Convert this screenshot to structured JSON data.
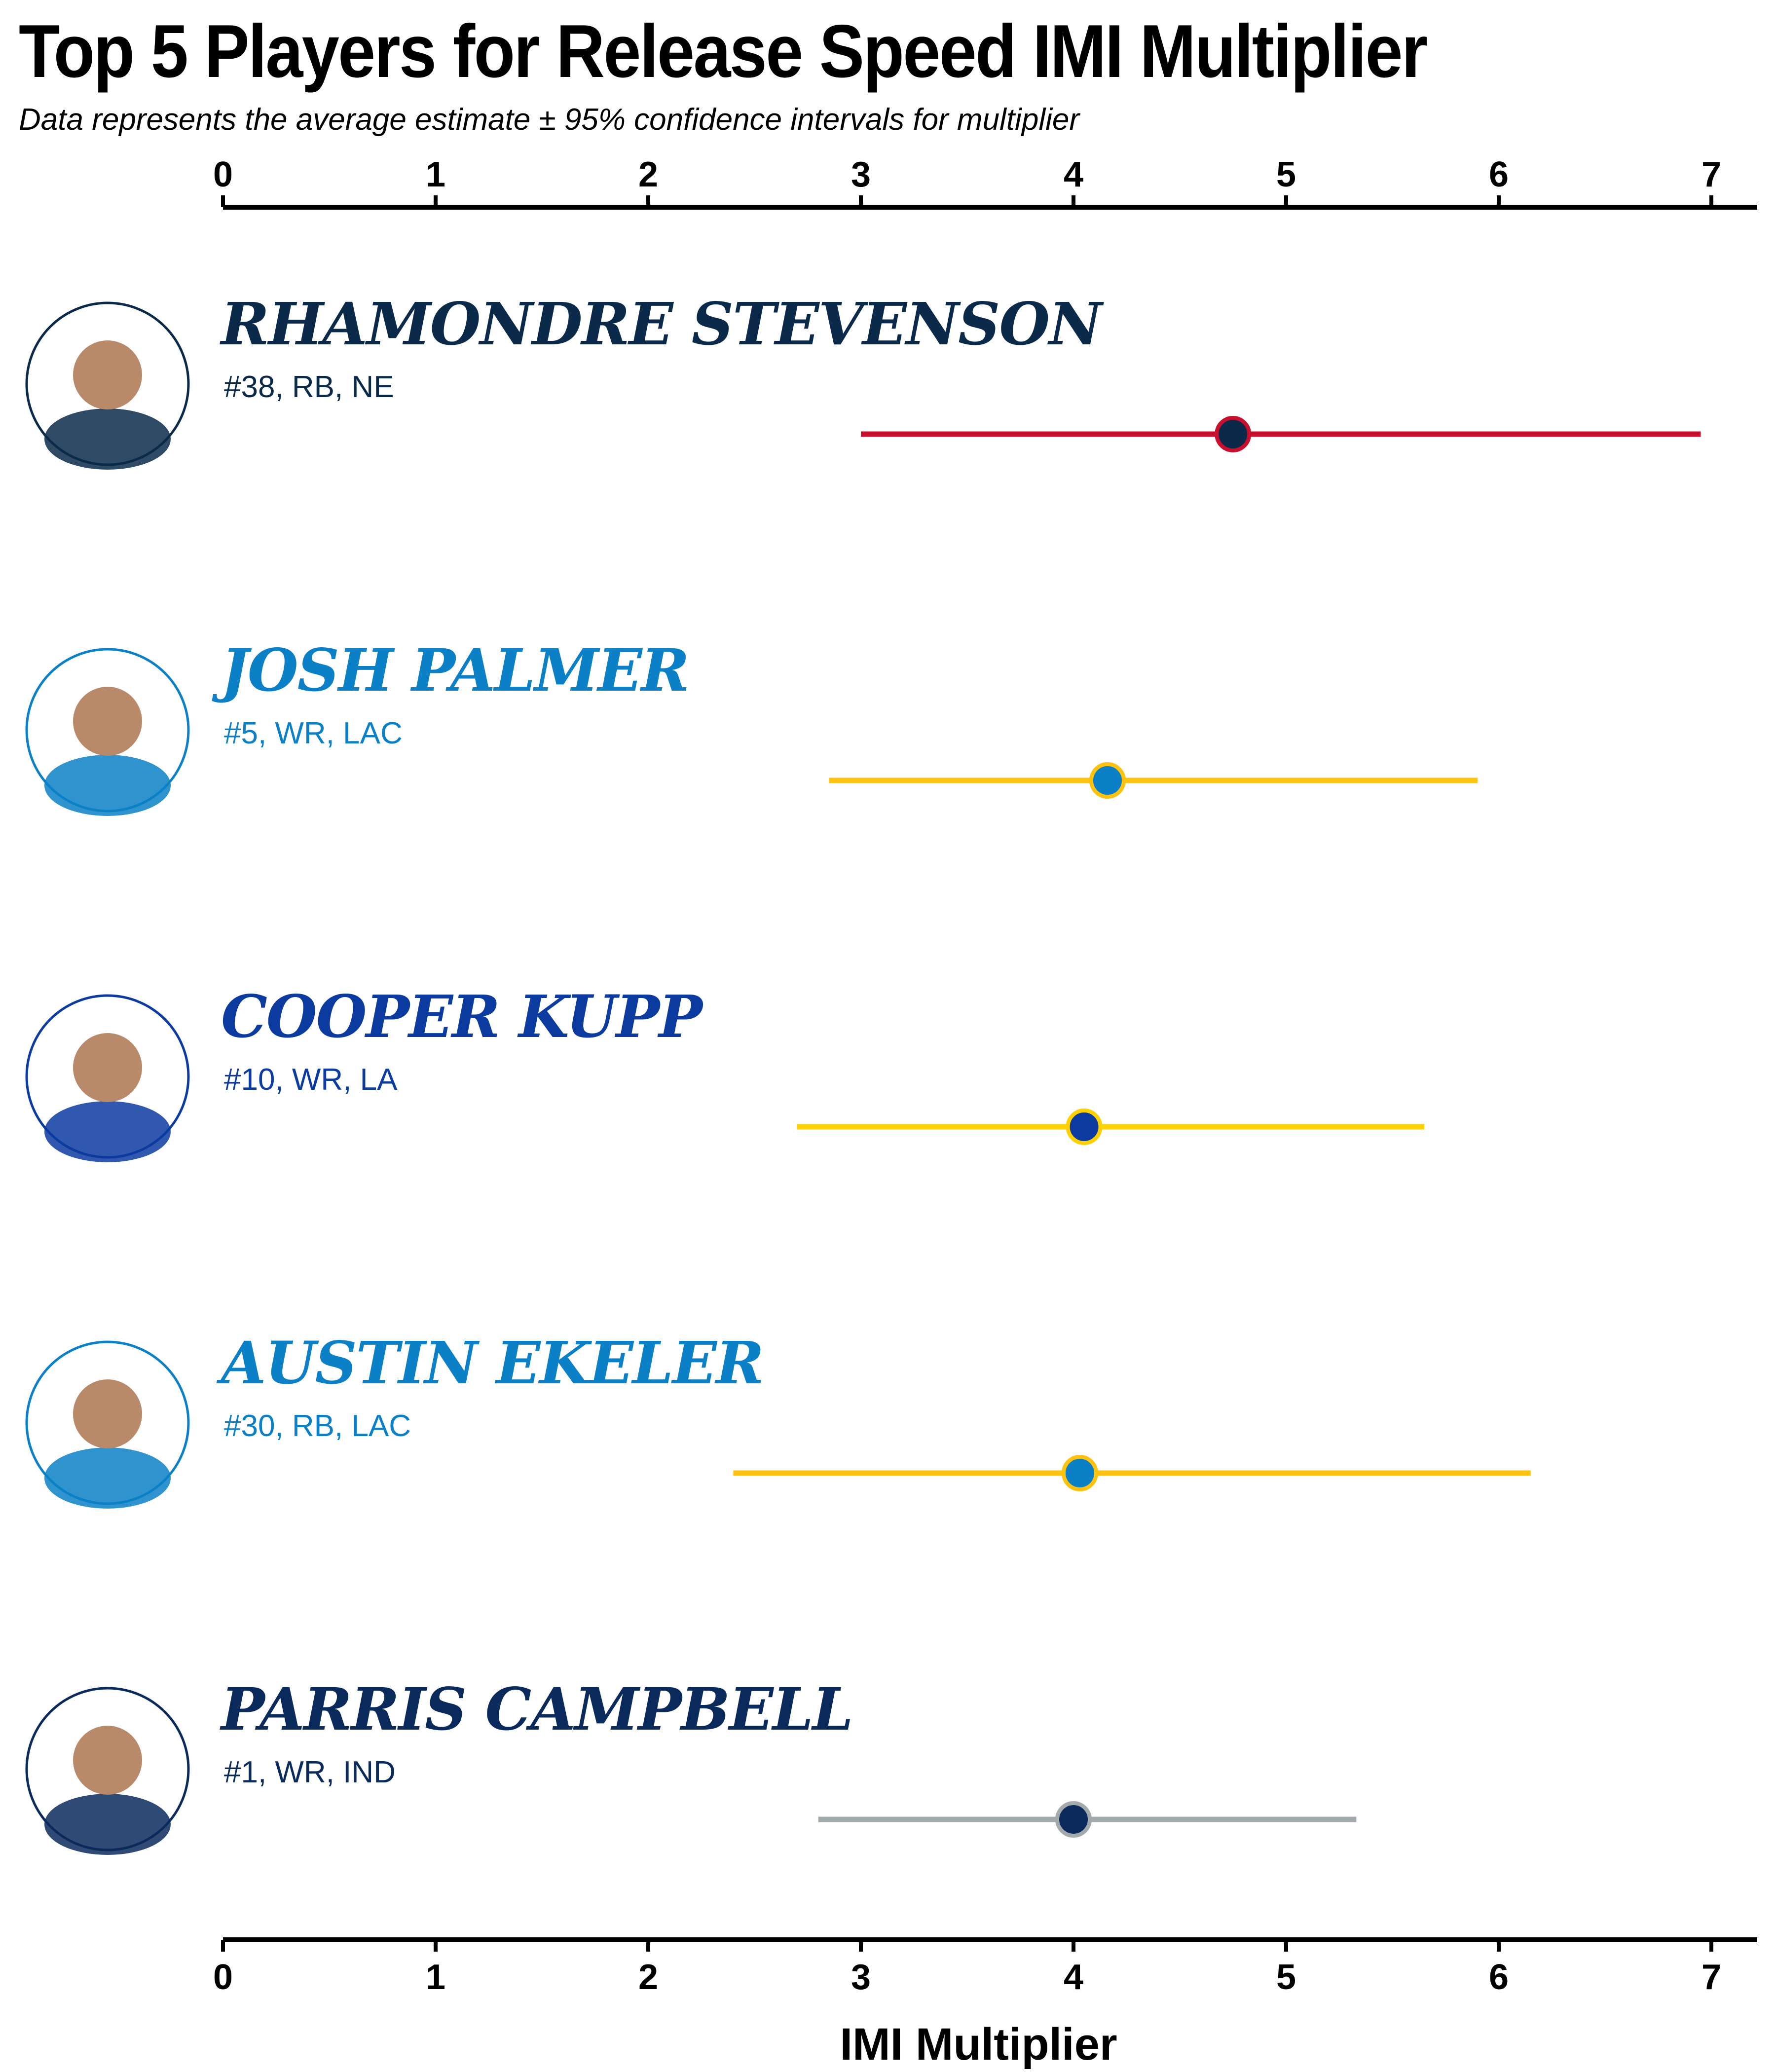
{
  "title": "Top 5 Players for Release Speed IMI Multiplier",
  "subtitle": "Data represents the average estimate ± 95% confidence intervals for multiplier",
  "chart_data": {
    "type": "scatter",
    "orientation": "horizontal",
    "xlabel": "IMI Multiplier",
    "xlim": [
      0,
      7.2
    ],
    "xticks": [
      0,
      1,
      2,
      3,
      4,
      5,
      6,
      7
    ],
    "axis_top": true,
    "axis_bottom": true,
    "grid": false,
    "players": [
      {
        "name": "RHAMONDRE STEVENSON",
        "info": "#38, RB, NE",
        "estimate": 4.75,
        "ci_low": 3.0,
        "ci_high": 6.95,
        "name_color": "#0b2a4a",
        "line_color": "#c8102e",
        "point_color": "#0b2a4a",
        "point_edge": "#c8102e"
      },
      {
        "name": "JOSH PALMER",
        "info": "#5, WR, LAC",
        "estimate": 4.16,
        "ci_low": 2.85,
        "ci_high": 5.9,
        "name_color": "#0b80c6",
        "line_color": "#ffc20e",
        "point_color": "#0b80c6",
        "point_edge": "#ffc20e"
      },
      {
        "name": "COOPER KUPP",
        "info": "#10, WR, LA",
        "estimate": 4.05,
        "ci_low": 2.7,
        "ci_high": 5.65,
        "name_color": "#0c3ba0",
        "line_color": "#ffd100",
        "point_color": "#0c3ba0",
        "point_edge": "#ffd100"
      },
      {
        "name": "AUSTIN EKELER",
        "info": "#30, RB, LAC",
        "estimate": 4.03,
        "ci_low": 2.4,
        "ci_high": 6.15,
        "name_color": "#0b80c6",
        "line_color": "#ffc20e",
        "point_color": "#0b80c6",
        "point_edge": "#ffc20e"
      },
      {
        "name": "PARRIS CAMPBELL",
        "info": "#1, WR, IND",
        "estimate": 4.0,
        "ci_low": 2.8,
        "ci_high": 5.33,
        "name_color": "#0b2a5c",
        "line_color": "#a2aaad",
        "point_color": "#0b2a5c",
        "point_edge": "#a2aaad"
      }
    ]
  }
}
